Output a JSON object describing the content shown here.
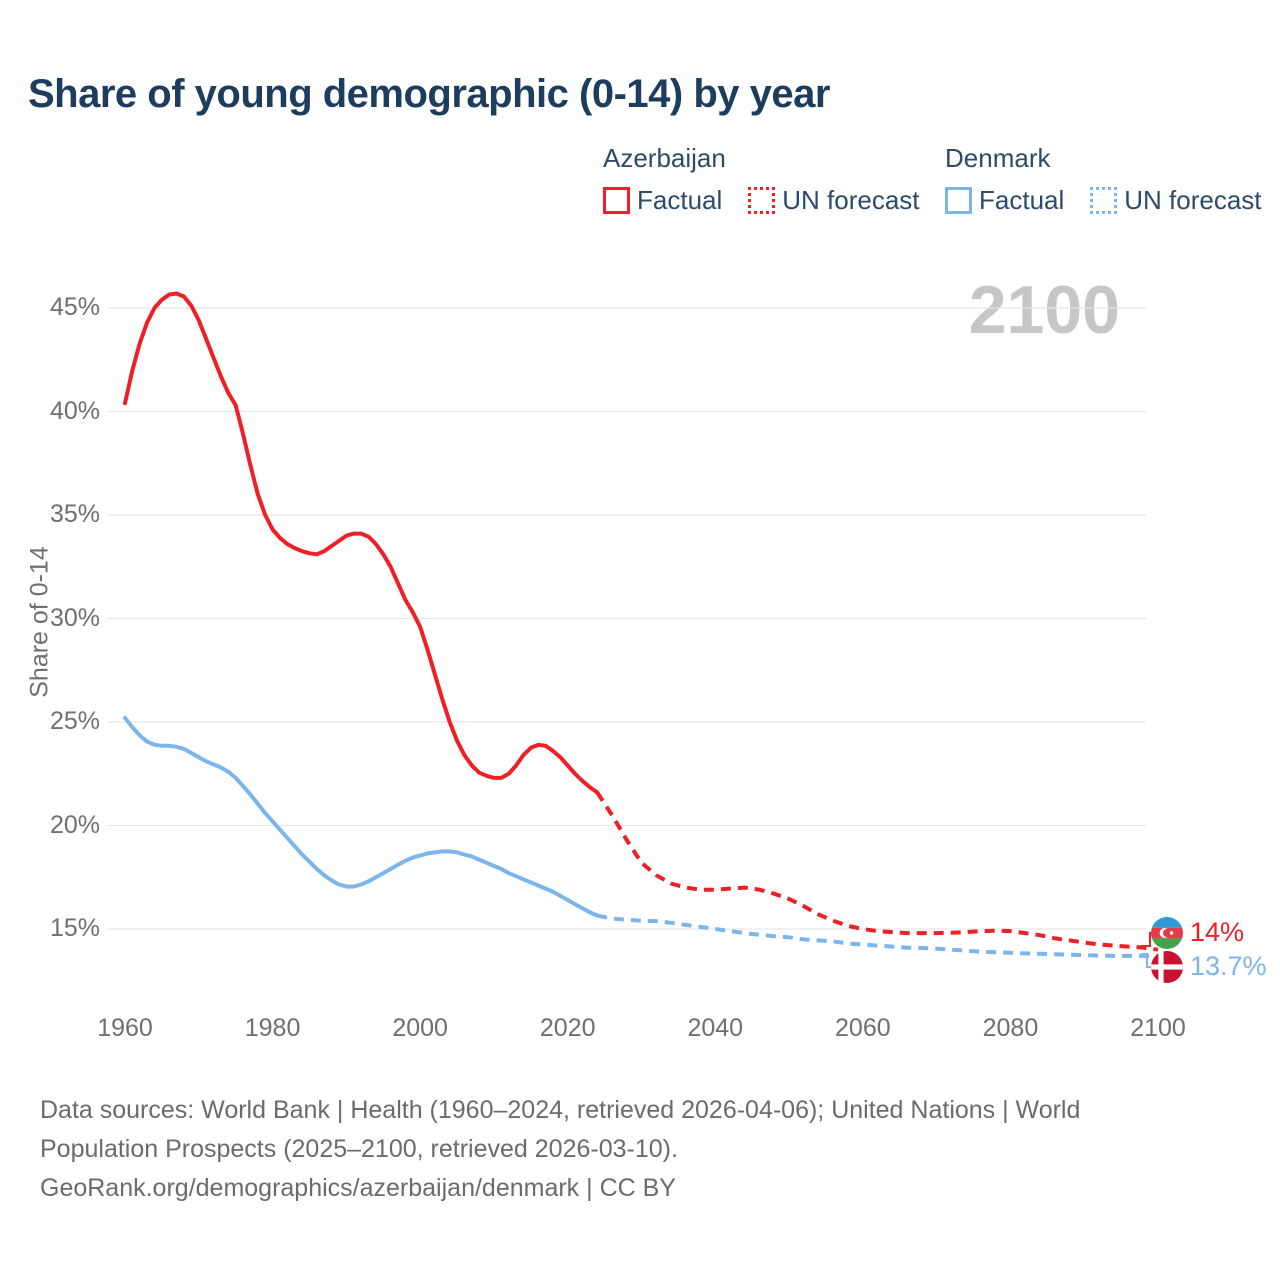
{
  "header": {
    "title": "Share of young demographic (0-14) by year"
  },
  "legend": {
    "groups": [
      {
        "name": "Azerbaijan",
        "items": [
          {
            "label": "Factual",
            "style": "solid",
            "color": "#ee1f25"
          },
          {
            "label": "UN forecast",
            "style": "dotted",
            "color": "#ee1f25"
          }
        ]
      },
      {
        "name": "Denmark",
        "items": [
          {
            "label": "Factual",
            "style": "solid",
            "color": "#7cb5ec"
          },
          {
            "label": "UN forecast",
            "style": "dotted",
            "color": "#7cb5ec"
          }
        ]
      }
    ]
  },
  "chart": {
    "watermark": "2100",
    "y_axis_label": "Share of 0-14",
    "colors": {
      "azerbaijan": "#ee1f25",
      "denmark": "#7cb5ec",
      "grid": "#e6e6e6",
      "watermark": "#c6c6c6",
      "title": "#1d3c5e",
      "axis_text": "#6f6f6f"
    }
  },
  "chart_data": {
    "type": "line",
    "title": "Share of young demographic (0-14) by year",
    "xlabel": "",
    "ylabel": "Share of 0-14",
    "x_range": [
      1960,
      2100
    ],
    "x_ticks": [
      1960,
      1980,
      2000,
      2020,
      2040,
      2060,
      2080,
      2100
    ],
    "y_ticks_percent": [
      15,
      20,
      25,
      30,
      35,
      40,
      45
    ],
    "ylim": [
      15,
      45
    ],
    "grid": "horizontal",
    "legend_position": "top",
    "series": [
      {
        "name": "Azerbaijan Factual",
        "color": "#ee1f25",
        "dash": "solid",
        "points": [
          [
            1960,
            40.4
          ],
          [
            1961,
            42.0
          ],
          [
            1962,
            43.3
          ],
          [
            1963,
            44.3
          ],
          [
            1964,
            45.0
          ],
          [
            1965,
            45.4
          ],
          [
            1966,
            45.65
          ],
          [
            1967,
            45.7
          ],
          [
            1968,
            45.55
          ],
          [
            1969,
            45.1
          ],
          [
            1970,
            44.4
          ],
          [
            1971,
            43.5
          ],
          [
            1972,
            42.6
          ],
          [
            1973,
            41.7
          ],
          [
            1974,
            40.9
          ],
          [
            1975,
            40.3
          ],
          [
            1976,
            38.9
          ],
          [
            1977,
            37.4
          ],
          [
            1978,
            36.0
          ],
          [
            1979,
            35.0
          ],
          [
            1980,
            34.3
          ],
          [
            1981,
            33.9
          ],
          [
            1982,
            33.6
          ],
          [
            1983,
            33.4
          ],
          [
            1984,
            33.25
          ],
          [
            1985,
            33.15
          ],
          [
            1986,
            33.1
          ],
          [
            1987,
            33.25
          ],
          [
            1988,
            33.5
          ],
          [
            1989,
            33.75
          ],
          [
            1990,
            34.0
          ],
          [
            1991,
            34.1
          ],
          [
            1992,
            34.1
          ],
          [
            1993,
            33.95
          ],
          [
            1994,
            33.6
          ],
          [
            1995,
            33.1
          ],
          [
            1996,
            32.5
          ],
          [
            1997,
            31.7
          ],
          [
            1998,
            30.9
          ],
          [
            1999,
            30.3
          ],
          [
            2000,
            29.6
          ],
          [
            2001,
            28.5
          ],
          [
            2002,
            27.3
          ],
          [
            2003,
            26.1
          ],
          [
            2004,
            25.0
          ],
          [
            2005,
            24.1
          ],
          [
            2006,
            23.4
          ],
          [
            2007,
            22.9
          ],
          [
            2008,
            22.55
          ],
          [
            2009,
            22.4
          ],
          [
            2010,
            22.3
          ],
          [
            2011,
            22.3
          ],
          [
            2012,
            22.5
          ],
          [
            2013,
            22.9
          ],
          [
            2014,
            23.4
          ],
          [
            2015,
            23.75
          ],
          [
            2016,
            23.9
          ],
          [
            2017,
            23.85
          ],
          [
            2018,
            23.6
          ],
          [
            2019,
            23.3
          ],
          [
            2020,
            22.9
          ],
          [
            2021,
            22.5
          ],
          [
            2022,
            22.15
          ],
          [
            2023,
            21.85
          ],
          [
            2024,
            21.6
          ]
        ]
      },
      {
        "name": "Azerbaijan UN forecast",
        "color": "#ee1f25",
        "dash": "dashed",
        "points": [
          [
            2024,
            21.6
          ],
          [
            2026,
            20.5
          ],
          [
            2028,
            19.3
          ],
          [
            2030,
            18.2
          ],
          [
            2032,
            17.6
          ],
          [
            2034,
            17.2
          ],
          [
            2036,
            17.0
          ],
          [
            2038,
            16.9
          ],
          [
            2040,
            16.9
          ],
          [
            2042,
            16.95
          ],
          [
            2044,
            17.0
          ],
          [
            2046,
            16.9
          ],
          [
            2048,
            16.7
          ],
          [
            2050,
            16.45
          ],
          [
            2052,
            16.1
          ],
          [
            2054,
            15.7
          ],
          [
            2056,
            15.4
          ],
          [
            2058,
            15.15
          ],
          [
            2060,
            15.0
          ],
          [
            2062,
            14.9
          ],
          [
            2064,
            14.85
          ],
          [
            2066,
            14.8
          ],
          [
            2068,
            14.8
          ],
          [
            2070,
            14.8
          ],
          [
            2072,
            14.82
          ],
          [
            2074,
            14.85
          ],
          [
            2076,
            14.9
          ],
          [
            2078,
            14.92
          ],
          [
            2080,
            14.9
          ],
          [
            2082,
            14.8
          ],
          [
            2084,
            14.7
          ],
          [
            2086,
            14.55
          ],
          [
            2088,
            14.45
          ],
          [
            2090,
            14.35
          ],
          [
            2092,
            14.25
          ],
          [
            2094,
            14.2
          ],
          [
            2096,
            14.15
          ],
          [
            2098,
            14.1
          ],
          [
            2100,
            14.0
          ]
        ]
      },
      {
        "name": "Denmark Factual",
        "color": "#7cb5ec",
        "dash": "solid",
        "points": [
          [
            1960,
            25.2
          ],
          [
            1961,
            24.75
          ],
          [
            1962,
            24.35
          ],
          [
            1963,
            24.05
          ],
          [
            1964,
            23.9
          ],
          [
            1965,
            23.85
          ],
          [
            1966,
            23.85
          ],
          [
            1967,
            23.8
          ],
          [
            1968,
            23.7
          ],
          [
            1969,
            23.5
          ],
          [
            1970,
            23.3
          ],
          [
            1971,
            23.1
          ],
          [
            1972,
            22.95
          ],
          [
            1973,
            22.8
          ],
          [
            1974,
            22.6
          ],
          [
            1975,
            22.3
          ],
          [
            1976,
            21.9
          ],
          [
            1977,
            21.5
          ],
          [
            1978,
            21.05
          ],
          [
            1979,
            20.6
          ],
          [
            1980,
            20.2
          ],
          [
            1981,
            19.8
          ],
          [
            1982,
            19.4
          ],
          [
            1983,
            19.0
          ],
          [
            1984,
            18.6
          ],
          [
            1985,
            18.25
          ],
          [
            1986,
            17.9
          ],
          [
            1987,
            17.6
          ],
          [
            1988,
            17.35
          ],
          [
            1989,
            17.15
          ],
          [
            1990,
            17.05
          ],
          [
            1991,
            17.05
          ],
          [
            1992,
            17.15
          ],
          [
            1993,
            17.3
          ],
          [
            1994,
            17.5
          ],
          [
            1995,
            17.7
          ],
          [
            1996,
            17.9
          ],
          [
            1997,
            18.1
          ],
          [
            1998,
            18.3
          ],
          [
            1999,
            18.45
          ],
          [
            2000,
            18.55
          ],
          [
            2001,
            18.65
          ],
          [
            2002,
            18.7
          ],
          [
            2003,
            18.75
          ],
          [
            2004,
            18.75
          ],
          [
            2005,
            18.7
          ],
          [
            2006,
            18.6
          ],
          [
            2007,
            18.5
          ],
          [
            2008,
            18.35
          ],
          [
            2009,
            18.2
          ],
          [
            2010,
            18.05
          ],
          [
            2011,
            17.9
          ],
          [
            2012,
            17.7
          ],
          [
            2013,
            17.55
          ],
          [
            2014,
            17.4
          ],
          [
            2015,
            17.25
          ],
          [
            2016,
            17.1
          ],
          [
            2017,
            16.95
          ],
          [
            2018,
            16.8
          ],
          [
            2019,
            16.6
          ],
          [
            2020,
            16.4
          ],
          [
            2021,
            16.2
          ],
          [
            2022,
            16.0
          ],
          [
            2023,
            15.8
          ],
          [
            2024,
            15.65
          ]
        ]
      },
      {
        "name": "Denmark UN forecast",
        "color": "#7cb5ec",
        "dash": "dashed",
        "points": [
          [
            2024,
            15.65
          ],
          [
            2026,
            15.5
          ],
          [
            2028,
            15.45
          ],
          [
            2030,
            15.4
          ],
          [
            2032,
            15.38
          ],
          [
            2034,
            15.3
          ],
          [
            2036,
            15.2
          ],
          [
            2038,
            15.1
          ],
          [
            2040,
            15.0
          ],
          [
            2042,
            14.9
          ],
          [
            2044,
            14.8
          ],
          [
            2046,
            14.72
          ],
          [
            2048,
            14.65
          ],
          [
            2050,
            14.6
          ],
          [
            2052,
            14.5
          ],
          [
            2054,
            14.45
          ],
          [
            2056,
            14.4
          ],
          [
            2058,
            14.3
          ],
          [
            2060,
            14.25
          ],
          [
            2062,
            14.2
          ],
          [
            2064,
            14.15
          ],
          [
            2066,
            14.1
          ],
          [
            2068,
            14.08
          ],
          [
            2070,
            14.05
          ],
          [
            2072,
            14.0
          ],
          [
            2074,
            13.95
          ],
          [
            2076,
            13.9
          ],
          [
            2078,
            13.88
          ],
          [
            2080,
            13.85
          ],
          [
            2082,
            13.82
          ],
          [
            2084,
            13.8
          ],
          [
            2086,
            13.78
          ],
          [
            2088,
            13.76
          ],
          [
            2090,
            13.74
          ],
          [
            2092,
            13.72
          ],
          [
            2094,
            13.7
          ],
          [
            2096,
            13.7
          ],
          [
            2098,
            13.7
          ],
          [
            2100,
            13.7
          ]
        ]
      }
    ],
    "end_labels": [
      {
        "country": "Azerbaijan",
        "flag": "azerbaijan",
        "value_label": "14%",
        "color": "#ee1f25"
      },
      {
        "country": "Denmark",
        "flag": "denmark",
        "value_label": "13.7%",
        "color": "#7cb5ec"
      }
    ]
  },
  "footer": {
    "lines": [
      "Data sources: World Bank | Health (1960–2024, retrieved 2026-04-06); United Nations | World",
      "Population Prospects (2025–2100, retrieved 2026-03-10).",
      "GeoRank.org/demographics/azerbaijan/denmark | CC BY"
    ]
  }
}
